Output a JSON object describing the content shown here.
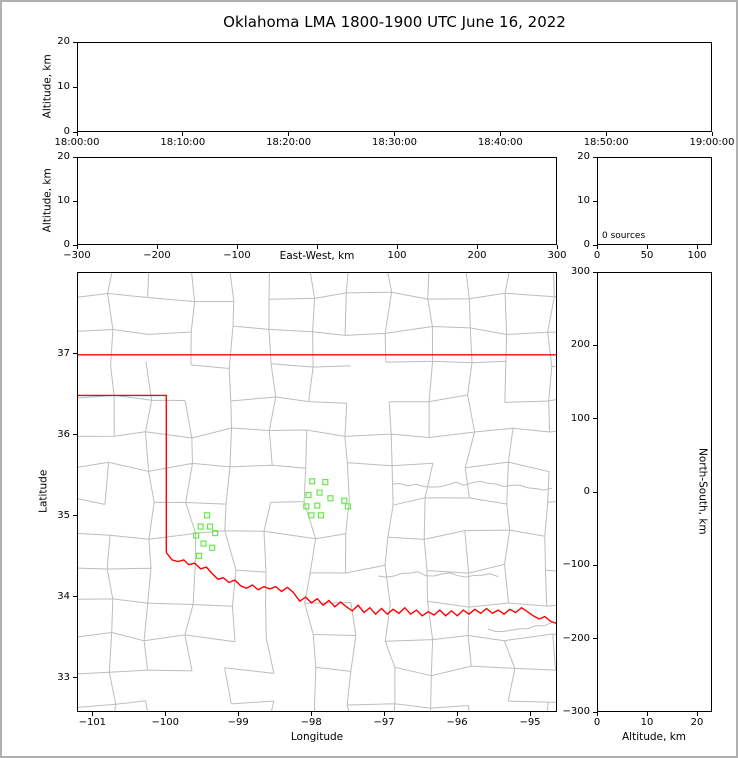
{
  "title": "Oklahoma LMA 1800-1900 UTC June 16, 2022",
  "colors": {
    "state_border": "#ff0000",
    "county_lines": "#bdbdbd",
    "source_marker": "#69e84a",
    "axis": "#000000",
    "background": "#ffffff",
    "frame": "#b0b0b0"
  },
  "chart_data": [
    {
      "id": "time-altitude-panel",
      "type": "scatter",
      "xlabel": "",
      "ylabel": "Altitude, km",
      "xticks": [
        "18:00:00",
        "18:10:00",
        "18:20:00",
        "18:30:00",
        "18:40:00",
        "18:50:00",
        "19:00:00"
      ],
      "ylim": [
        0,
        20
      ],
      "yticks": [
        0,
        10,
        20
      ],
      "points": []
    },
    {
      "id": "eastwest-altitude-panel",
      "type": "scatter",
      "xlabel": "East-West, km",
      "ylabel": "Altitude, km",
      "xlim": [
        -300,
        300
      ],
      "xticks": [
        -300,
        -200,
        -100,
        0,
        100,
        200,
        300
      ],
      "xtick_labels": [
        "−300",
        "−200",
        "−100",
        "",
        "100",
        "200",
        "300"
      ],
      "ylim": [
        0,
        20
      ],
      "yticks": [
        0,
        10,
        20
      ],
      "points": []
    },
    {
      "id": "altitude-histogram-panel",
      "type": "line",
      "annotation": "0 sources",
      "xlim": [
        0,
        115
      ],
      "xticks": [
        0,
        50,
        100
      ],
      "ylim": [
        0,
        20
      ],
      "yticks": [
        0,
        10,
        20
      ],
      "points": []
    },
    {
      "id": "plan-view-map-panel",
      "type": "scatter",
      "xlabel": "Longitude",
      "ylabel": "Latitude",
      "xlim": [
        -101.21,
        -94.63
      ],
      "xticks": [
        -101,
        -100,
        -99,
        -98,
        -97,
        -96,
        -95
      ],
      "xtick_labels": [
        "−101",
        "−100",
        "−99",
        "−98",
        "−97",
        "−96",
        "−95"
      ],
      "ylim": [
        32.58,
        38.01
      ],
      "yticks": [
        33,
        34,
        35,
        36,
        37
      ],
      "marker_style": "open-square",
      "sources": [
        [
          -98.0,
          35.44
        ],
        [
          -97.82,
          35.43
        ],
        [
          -98.05,
          35.27
        ],
        [
          -97.9,
          35.3
        ],
        [
          -98.08,
          35.13
        ],
        [
          -97.93,
          35.14
        ],
        [
          -97.75,
          35.23
        ],
        [
          -98.01,
          35.02
        ],
        [
          -97.88,
          35.02
        ],
        [
          -97.56,
          35.2
        ],
        [
          -97.51,
          35.13
        ],
        [
          -99.44,
          35.02
        ],
        [
          -99.53,
          34.88
        ],
        [
          -99.4,
          34.88
        ],
        [
          -99.59,
          34.77
        ],
        [
          -99.33,
          34.8
        ],
        [
          -99.49,
          34.67
        ],
        [
          -99.37,
          34.62
        ],
        [
          -99.55,
          34.52
        ]
      ],
      "boundary_polylines": [
        [
          [
            -101.21,
            37.0
          ],
          [
            -94.63,
            37.0
          ]
        ],
        [
          [
            -101.21,
            36.5
          ],
          [
            -100.0,
            36.5
          ],
          [
            -100.0,
            34.56
          ]
        ],
        [
          [
            -100.0,
            34.56
          ],
          [
            -99.92,
            34.47
          ],
          [
            -99.84,
            34.45
          ],
          [
            -99.76,
            34.47
          ],
          [
            -99.69,
            34.41
          ],
          [
            -99.61,
            34.43
          ],
          [
            -99.53,
            34.36
          ],
          [
            -99.45,
            34.38
          ],
          [
            -99.37,
            34.3
          ],
          [
            -99.29,
            34.23
          ],
          [
            -99.22,
            34.25
          ],
          [
            -99.14,
            34.19
          ],
          [
            -99.06,
            34.22
          ],
          [
            -98.98,
            34.15
          ],
          [
            -98.9,
            34.12
          ],
          [
            -98.82,
            34.16
          ],
          [
            -98.74,
            34.1
          ],
          [
            -98.66,
            34.14
          ],
          [
            -98.58,
            34.11
          ],
          [
            -98.5,
            34.14
          ],
          [
            -98.42,
            34.08
          ],
          [
            -98.34,
            34.13
          ],
          [
            -98.26,
            34.07
          ],
          [
            -98.17,
            33.96
          ],
          [
            -98.09,
            34.01
          ],
          [
            -98.01,
            33.94
          ],
          [
            -97.93,
            33.99
          ],
          [
            -97.85,
            33.91
          ],
          [
            -97.77,
            33.97
          ],
          [
            -97.69,
            33.89
          ],
          [
            -97.61,
            33.95
          ],
          [
            -97.53,
            33.89
          ],
          [
            -97.45,
            33.84
          ],
          [
            -97.37,
            33.91
          ],
          [
            -97.29,
            33.82
          ],
          [
            -97.21,
            33.88
          ],
          [
            -97.13,
            33.8
          ],
          [
            -97.05,
            33.87
          ],
          [
            -96.97,
            33.8
          ],
          [
            -96.89,
            33.86
          ],
          [
            -96.81,
            33.81
          ],
          [
            -96.73,
            33.88
          ],
          [
            -96.65,
            33.8
          ],
          [
            -96.57,
            33.85
          ],
          [
            -96.49,
            33.78
          ],
          [
            -96.41,
            33.83
          ],
          [
            -96.33,
            33.79
          ],
          [
            -96.25,
            33.85
          ],
          [
            -96.17,
            33.78
          ],
          [
            -96.09,
            33.84
          ],
          [
            -96.01,
            33.78
          ],
          [
            -95.93,
            33.85
          ],
          [
            -95.85,
            33.8
          ],
          [
            -95.77,
            33.86
          ],
          [
            -95.69,
            33.81
          ],
          [
            -95.61,
            33.87
          ],
          [
            -95.53,
            33.81
          ],
          [
            -95.45,
            33.85
          ],
          [
            -95.37,
            33.8
          ],
          [
            -95.29,
            33.86
          ],
          [
            -95.21,
            33.82
          ],
          [
            -95.13,
            33.88
          ],
          [
            -95.05,
            33.83
          ],
          [
            -94.97,
            33.78
          ],
          [
            -94.89,
            33.74
          ],
          [
            -94.81,
            33.77
          ],
          [
            -94.73,
            33.71
          ],
          [
            -94.63,
            33.68
          ]
        ]
      ]
    },
    {
      "id": "northsouth-altitude-panel",
      "type": "scatter",
      "xlabel": "Altitude, km",
      "ylabel": "North-South, km",
      "xlim": [
        0,
        23
      ],
      "xticks": [
        0,
        10,
        20
      ],
      "ylim": [
        -300,
        300
      ],
      "yticks": [
        300,
        200,
        100,
        0,
        -100,
        -200,
        -300
      ],
      "ytick_labels": [
        "300",
        "200",
        "100",
        "0",
        "−100",
        "−200",
        "−300"
      ],
      "points": []
    }
  ]
}
